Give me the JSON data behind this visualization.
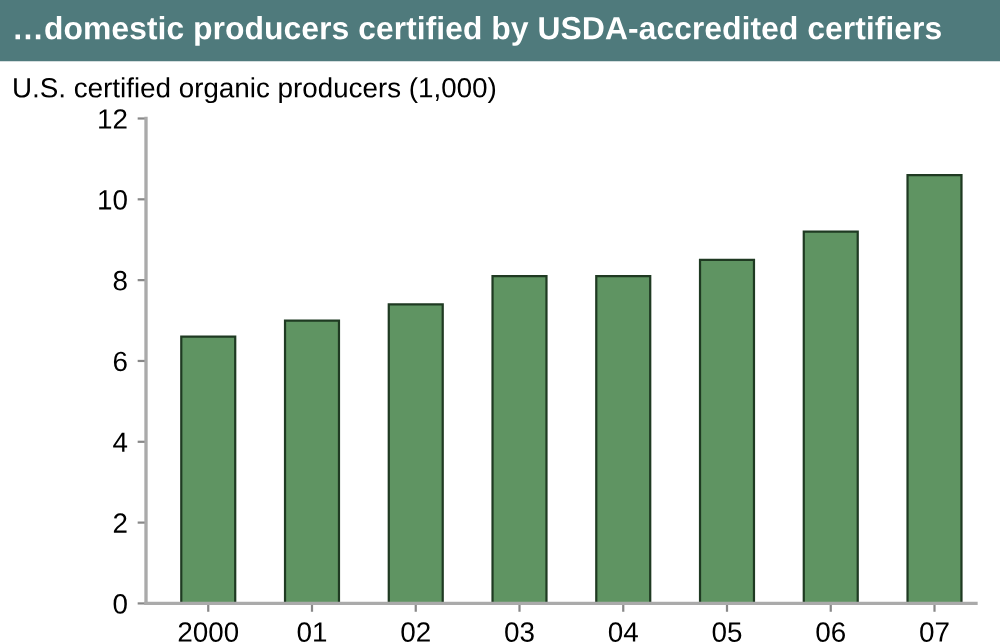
{
  "chart_data": {
    "type": "bar",
    "title": "…domestic producers certified by USDA-accredited certifiers",
    "ylabel": "U.S. certified organic producers (1,000)",
    "categories": [
      "2000",
      "01",
      "02",
      "03",
      "04",
      "05",
      "06",
      "07"
    ],
    "values": [
      6.6,
      7.0,
      7.4,
      8.1,
      8.1,
      8.5,
      9.2,
      10.6
    ],
    "color": "#5f9462",
    "ylim": [
      0,
      12
    ],
    "yticks": [
      0,
      2,
      4,
      6,
      8,
      10,
      12
    ],
    "grid": false
  }
}
